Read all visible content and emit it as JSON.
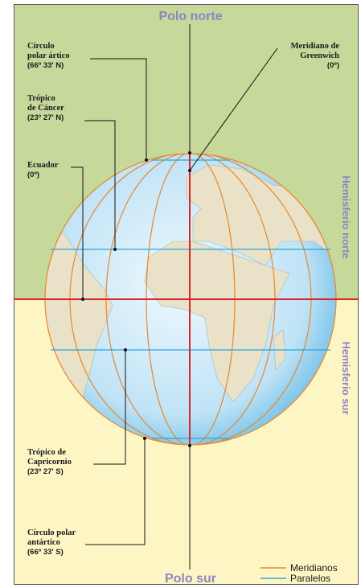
{
  "labels": {
    "north_pole": "Polo norte",
    "south_pole": "Polo sur",
    "north_hemisphere": "Hemisferio norte",
    "south_hemisphere": "Hemisferio sur"
  },
  "annotations": [
    {
      "lines": [
        "Círculo",
        "polar ártico",
        "(66º 33' N)"
      ]
    },
    {
      "lines": [
        "Trópico",
        "de Cáncer",
        "(23º 27' N)"
      ]
    },
    {
      "lines": [
        "Ecuador",
        "(0º)"
      ]
    },
    {
      "lines": [
        "Meridiano de",
        "Greenwich",
        "(0º)"
      ]
    },
    {
      "lines": [
        "Trópico de",
        "Capricornio",
        "(23º 27' S)"
      ]
    },
    {
      "lines": [
        "Círculo polar",
        "antártico",
        "(66º 33' S)"
      ]
    }
  ],
  "legend": [
    {
      "label": "Meridianos",
      "color": "#e8872b"
    },
    {
      "label": "Paralelos",
      "color": "#2aa6e0"
    }
  ]
}
